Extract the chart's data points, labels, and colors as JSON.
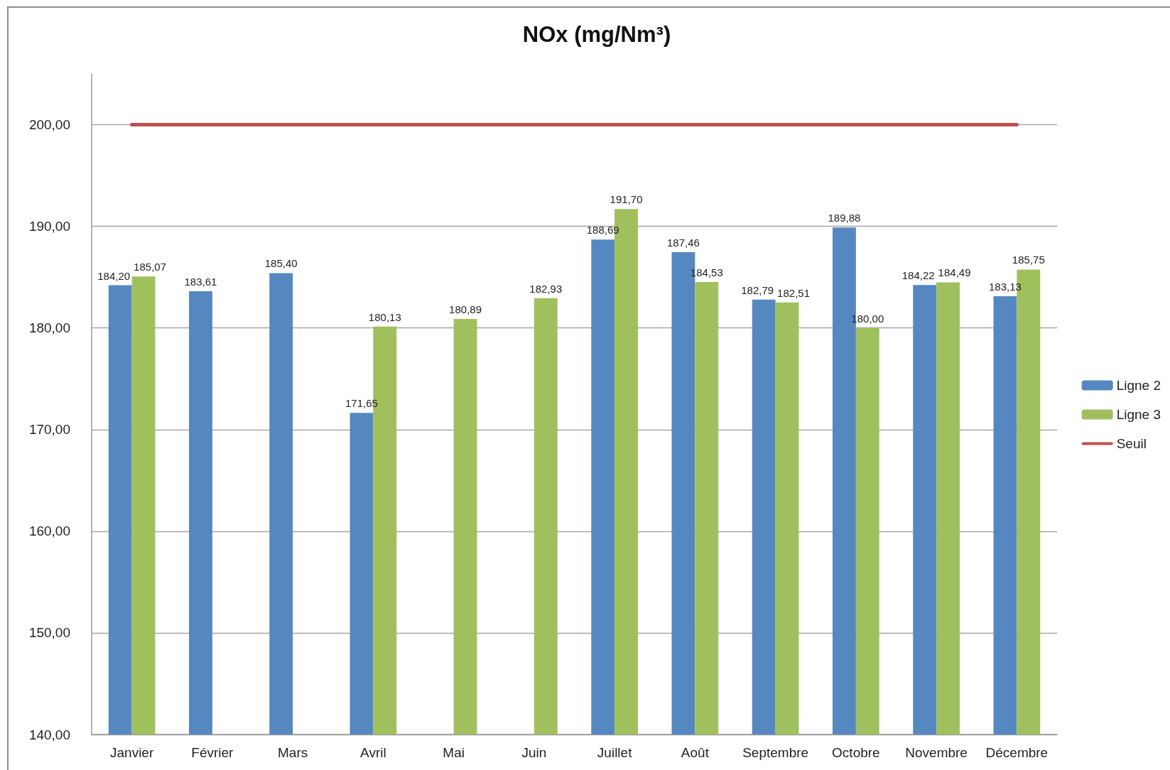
{
  "chart_data": {
    "type": "bar",
    "title": "NOx (mg/Nm³)",
    "categories": [
      "Janvier",
      "Février",
      "Mars",
      "Avril",
      "Mai",
      "Juin",
      "Juillet",
      "Août",
      "Septembre",
      "Octobre",
      "Novembre",
      "Décembre"
    ],
    "series": [
      {
        "name": "Ligne 2",
        "color": "#5588c1",
        "values": [
          184.2,
          183.61,
          185.4,
          171.65,
          null,
          null,
          188.69,
          187.46,
          182.79,
          189.88,
          184.22,
          183.13
        ],
        "value_labels": [
          "184,20",
          "183,61",
          "185,40",
          "171,65",
          null,
          null,
          "188,69",
          "187,46",
          "182,79",
          "189,88",
          "184,22",
          "183,13"
        ]
      },
      {
        "name": "Ligne 3",
        "color": "#a0bf5d",
        "values": [
          185.07,
          null,
          null,
          180.13,
          180.89,
          182.93,
          191.7,
          184.53,
          182.51,
          180.0,
          184.49,
          185.75
        ],
        "value_labels": [
          "185,07",
          null,
          null,
          "180,13",
          "180,89",
          "182,93",
          "191,70",
          "184,53",
          "182,51",
          "180,00",
          "184,49",
          "185,75"
        ]
      },
      {
        "name": "Seuil",
        "type": "line",
        "color": "#c0504d",
        "marker": "none",
        "values": [
          200,
          200,
          200,
          200,
          200,
          200,
          200,
          200,
          200,
          200,
          200,
          200
        ]
      }
    ],
    "ylim": [
      140,
      205
    ],
    "yticks": [
      {
        "value": 140,
        "label": "140,00"
      },
      {
        "value": 150,
        "label": "150,00"
      },
      {
        "value": 160,
        "label": "160,00"
      },
      {
        "value": 170,
        "label": "170,00"
      },
      {
        "value": 180,
        "label": "180,00"
      },
      {
        "value": 190,
        "label": "190,00"
      },
      {
        "value": 200,
        "label": "200,00"
      }
    ],
    "grid": "y",
    "legend": "right"
  }
}
